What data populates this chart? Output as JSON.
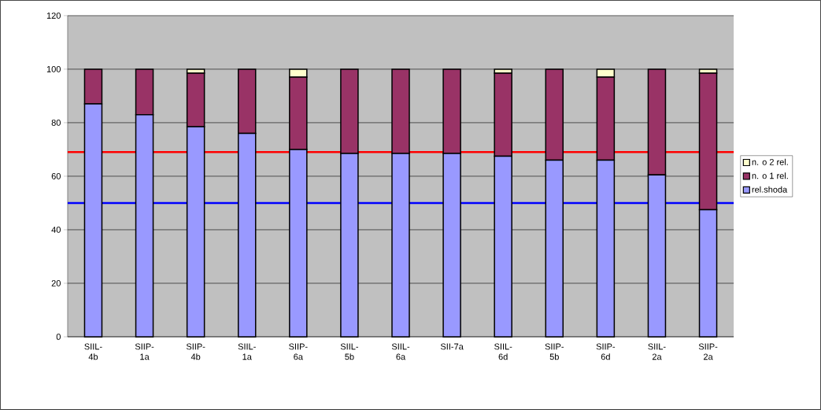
{
  "chart_data": {
    "type": "bar",
    "stacked": true,
    "categories": [
      "SIIL-4b",
      "SIIP-1a",
      "SIIP-4b",
      "SIIL-1a",
      "SIIP-6a",
      "SIIL-5b",
      "SIIL-6a",
      "SII-7a",
      "SIIL-6d",
      "SIIP-5b",
      "SIIP-6d",
      "SIIL-2a",
      "SIIP-2a"
    ],
    "series": [
      {
        "name": "rel.shoda",
        "color": "#9999ff",
        "values": [
          87,
          83,
          78.5,
          76,
          70,
          68.5,
          68.5,
          68.5,
          67.5,
          66,
          66,
          60.5,
          47.5
        ]
      },
      {
        "name": "n. o 1 rel.",
        "color": "#993366",
        "values": [
          13,
          17,
          20,
          24,
          27,
          31.5,
          31.5,
          31.5,
          31,
          34,
          31,
          39.5,
          51
        ]
      },
      {
        "name": "n. o 2 rel.",
        "color": "#ffffcc",
        "values": [
          0,
          0,
          1.5,
          0,
          3,
          0,
          0,
          0,
          1.5,
          0,
          3,
          0,
          1.5
        ]
      }
    ],
    "ylim": [
      0,
      120
    ],
    "yticks": [
      0,
      20,
      40,
      60,
      80,
      100,
      120
    ],
    "grid": "y",
    "legend": "right",
    "ref_lines": [
      {
        "axis": "y",
        "value": 69,
        "color": "#ff0000"
      },
      {
        "axis": "y",
        "value": 50,
        "color": "#0000ff"
      }
    ]
  }
}
